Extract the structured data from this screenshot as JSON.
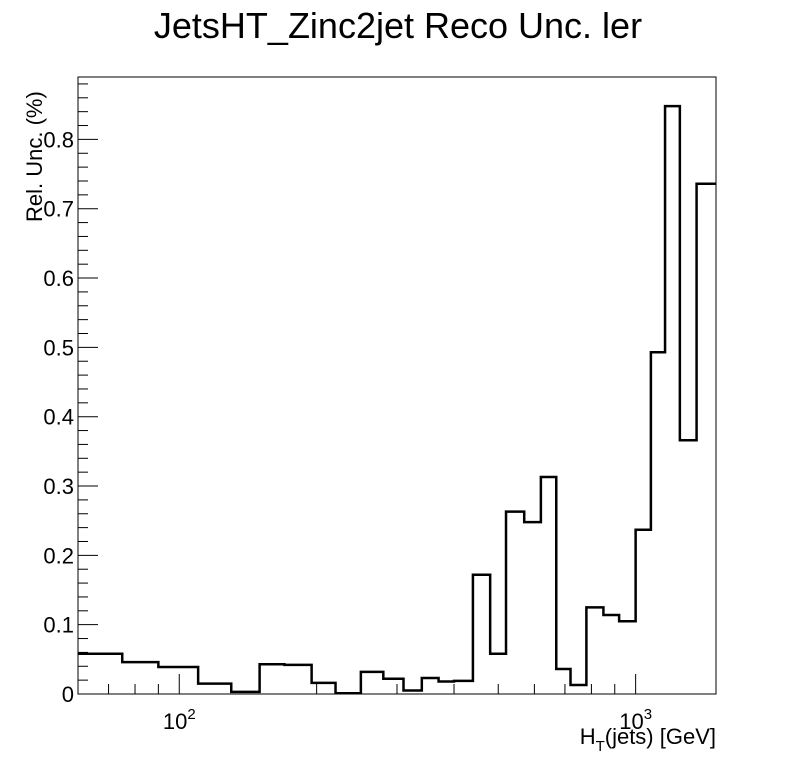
{
  "chart_data": {
    "type": "histogram",
    "title": "JetsHT_Zinc2jet Reco Unc. ler",
    "xlabel": {
      "main": "H",
      "sub": "T",
      "rest": "(jets) [GeV]"
    },
    "ylabel": "Rel. Unc. (%)",
    "xscale": "log",
    "xlim": [
      60,
      1500
    ],
    "ylim": [
      0,
      0.89
    ],
    "x_ticks": [
      {
        "value": 100,
        "base": "10",
        "exp": "2"
      },
      {
        "value": 1000,
        "base": "10",
        "exp": "3"
      }
    ],
    "y_ticks": [
      {
        "value": 0,
        "label": "0"
      },
      {
        "value": 0.1,
        "label": "0.1"
      },
      {
        "value": 0.2,
        "label": "0.2"
      },
      {
        "value": 0.3,
        "label": "0.3"
      },
      {
        "value": 0.4,
        "label": "0.4"
      },
      {
        "value": 0.5,
        "label": "0.5"
      },
      {
        "value": 0.6,
        "label": "0.6"
      },
      {
        "value": 0.7,
        "label": "0.7"
      },
      {
        "value": 0.8,
        "label": "0.8"
      }
    ],
    "grid": false,
    "bins": [
      {
        "lo": 60,
        "hi": 75,
        "value": 0.058
      },
      {
        "lo": 75,
        "hi": 90,
        "value": 0.046
      },
      {
        "lo": 90,
        "hi": 110,
        "value": 0.039
      },
      {
        "lo": 110,
        "hi": 130,
        "value": 0.015
      },
      {
        "lo": 130,
        "hi": 150,
        "value": 0.003
      },
      {
        "lo": 150,
        "hi": 170,
        "value": 0.043
      },
      {
        "lo": 170,
        "hi": 195,
        "value": 0.042
      },
      {
        "lo": 195,
        "hi": 220,
        "value": 0.016
      },
      {
        "lo": 220,
        "hi": 250,
        "value": 0.001
      },
      {
        "lo": 250,
        "hi": 280,
        "value": 0.032
      },
      {
        "lo": 280,
        "hi": 310,
        "value": 0.022
      },
      {
        "lo": 310,
        "hi": 340,
        "value": 0.005
      },
      {
        "lo": 340,
        "hi": 370,
        "value": 0.023
      },
      {
        "lo": 370,
        "hi": 400,
        "value": 0.018
      },
      {
        "lo": 400,
        "hi": 440,
        "value": 0.019
      },
      {
        "lo": 440,
        "hi": 480,
        "value": 0.172
      },
      {
        "lo": 480,
        "hi": 520,
        "value": 0.058
      },
      {
        "lo": 520,
        "hi": 570,
        "value": 0.263
      },
      {
        "lo": 570,
        "hi": 620,
        "value": 0.248
      },
      {
        "lo": 620,
        "hi": 670,
        "value": 0.313
      },
      {
        "lo": 670,
        "hi": 720,
        "value": 0.036
      },
      {
        "lo": 720,
        "hi": 780,
        "value": 0.013
      },
      {
        "lo": 780,
        "hi": 850,
        "value": 0.125
      },
      {
        "lo": 850,
        "hi": 920,
        "value": 0.114
      },
      {
        "lo": 920,
        "hi": 1000,
        "value": 0.105
      },
      {
        "lo": 1000,
        "hi": 1080,
        "value": 0.237
      },
      {
        "lo": 1080,
        "hi": 1160,
        "value": 0.493
      },
      {
        "lo": 1160,
        "hi": 1250,
        "value": 0.848
      },
      {
        "lo": 1250,
        "hi": 1360,
        "value": 0.366
      },
      {
        "lo": 1360,
        "hi": 1500,
        "value": 0.736
      }
    ]
  }
}
